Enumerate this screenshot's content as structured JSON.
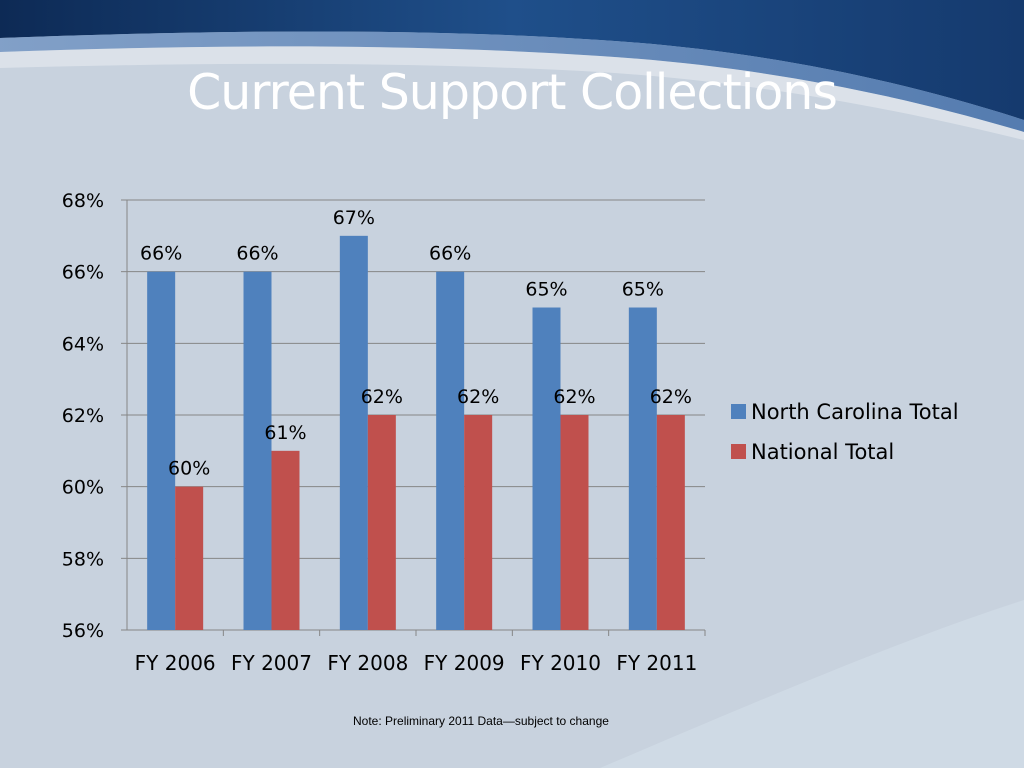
{
  "slide": {
    "title": "Current Support Collections",
    "note": "Note:  Preliminary 2011 Data—subject to change"
  },
  "chart_data": {
    "type": "bar",
    "categories": [
      "FY 2006",
      "FY 2007",
      "FY 2008",
      "FY 2009",
      "FY 2010",
      "FY 2011"
    ],
    "series": [
      {
        "name": "North Carolina Total",
        "color": "#4f81bd",
        "values": [
          66,
          66,
          67,
          66,
          65,
          65
        ],
        "labels": [
          "66%",
          "66%",
          "67%",
          "66%",
          "65%",
          "65%"
        ]
      },
      {
        "name": "National Total",
        "color": "#c0504d",
        "values": [
          60,
          61,
          62,
          62,
          62,
          62
        ],
        "labels": [
          "60%",
          "61%",
          "62%",
          "62%",
          "62%",
          "62%"
        ]
      }
    ],
    "ylim": [
      56,
      68
    ],
    "yticks": [
      56,
      58,
      60,
      62,
      64,
      66,
      68
    ],
    "ytick_labels": [
      "56%",
      "58%",
      "60%",
      "62%",
      "64%",
      "66%",
      "68%"
    ],
    "grid": true,
    "legend": "right"
  }
}
